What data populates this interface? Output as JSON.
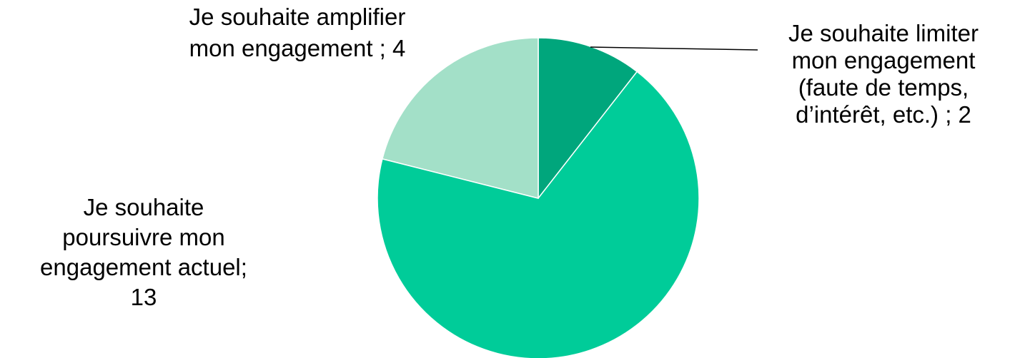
{
  "chart_data": {
    "type": "pie",
    "title": "",
    "slices": [
      {
        "label": "Je souhaite limiter mon engagement (faute de temps, d’intérêt, etc.) ; 2",
        "label_lines": [
          "Je souhaite limiter",
          "mon engagement",
          "(faute de temps,",
          "d’intérêt, etc.) ; 2"
        ],
        "category": "Je souhaite limiter mon engagement (faute de temps, d’intérêt, etc.)",
        "value": 2,
        "color": "#00a67c"
      },
      {
        "label": "Je souhaite poursuivre mon engagement actuel; 13",
        "label_lines": [
          "Je souhaite",
          "poursuivre mon",
          "engagement actuel;",
          "13"
        ],
        "category": "Je souhaite poursuivre mon engagement actuel",
        "value": 13,
        "color": "#00cc99"
      },
      {
        "label": "Je souhaite amplifier mon engagement ; 4",
        "label_lines": [
          "Je souhaite amplifier",
          "mon engagement ; 4"
        ],
        "category": "Je souhaite amplifier mon engagement",
        "value": 4,
        "color": "#a3e0c8"
      }
    ],
    "start_angle": "12 o'clock",
    "direction": "clockwise",
    "legend": "none",
    "data_labels": "outside"
  }
}
